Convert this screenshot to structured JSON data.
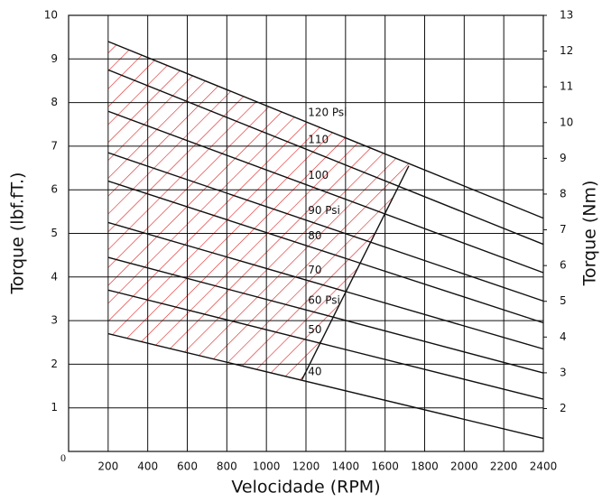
{
  "chart_data": {
    "type": "line",
    "x_label": "Velocidade (RPM)",
    "y_label": "Torque (lbf.fT.)",
    "y2_label": "Torque (Nm)",
    "xlim": [
      0,
      2400
    ],
    "xticks": [
      200,
      400,
      600,
      800,
      1000,
      1200,
      1400,
      1600,
      1800,
      2000,
      2200,
      2400
    ],
    "ylim": [
      0,
      10
    ],
    "yticks": [
      0,
      1,
      2,
      3,
      4,
      5,
      6,
      7,
      8,
      9,
      10
    ],
    "y2lim": [
      0.8,
      13
    ],
    "y2ticks": [
      2,
      3,
      4,
      5,
      6,
      7,
      8,
      9,
      10,
      11,
      12,
      13
    ],
    "grid": true,
    "x": [
      200,
      2400
    ],
    "series": [
      {
        "name": "120 Psi",
        "color": "#111111",
        "values": [
          9.4,
          5.35
        ]
      },
      {
        "name": "110",
        "color": "#111111",
        "values": [
          8.75,
          4.75
        ]
      },
      {
        "name": "100",
        "color": "#111111",
        "values": [
          7.8,
          4.1
        ]
      },
      {
        "name": "90 Psi",
        "color": "#111111",
        "values": [
          6.85,
          3.45
        ]
      },
      {
        "name": "80",
        "color": "#111111",
        "values": [
          6.2,
          2.95
        ]
      },
      {
        "name": "70",
        "color": "#111111",
        "values": [
          5.25,
          2.35
        ]
      },
      {
        "name": "60 Psi",
        "color": "#111111",
        "values": [
          4.45,
          1.8
        ]
      },
      {
        "name": "50",
        "color": "#111111",
        "values": [
          3.7,
          1.2
        ]
      },
      {
        "name": "40",
        "color": "#111111",
        "values": [
          2.7,
          0.3
        ]
      }
    ],
    "boundary": {
      "x": [
        1180,
        1720
      ],
      "values": [
        1.65,
        6.55
      ],
      "color": "#111111"
    },
    "hatch_color": "#e02020"
  }
}
